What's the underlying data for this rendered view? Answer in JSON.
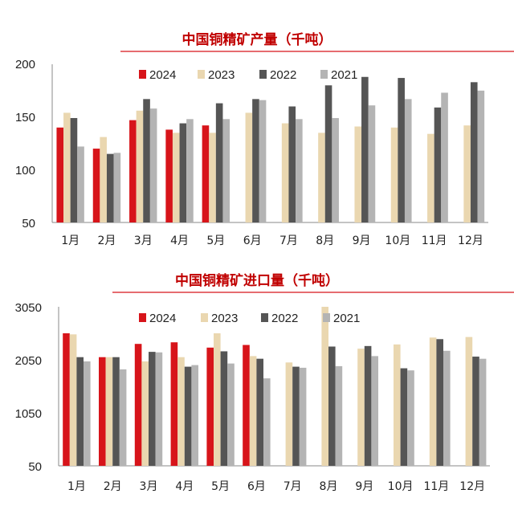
{
  "colors": {
    "2024": "#d7141a",
    "2023": "#ead7b0",
    "2022": "#555555",
    "2021": "#b4b4b4",
    "title": "#c00000",
    "rule": "#d7141a"
  },
  "chart_data": [
    {
      "type": "bar",
      "title": "中国铜精矿产量（千吨）",
      "categories": [
        "1月",
        "2月",
        "3月",
        "4月",
        "5月",
        "6月",
        "7月",
        "8月",
        "9月",
        "10月",
        "11月",
        "12月"
      ],
      "ylim": [
        50,
        200
      ],
      "yticks": [
        "200",
        "150",
        "100",
        "50"
      ],
      "ytick_values": [
        200,
        150,
        100,
        50
      ],
      "legend_position": "top-center",
      "grid": false,
      "series": [
        {
          "name": "2024",
          "color_key": "2024",
          "values": [
            140,
            120,
            147,
            138,
            142,
            null,
            null,
            null,
            null,
            null,
            null,
            null
          ]
        },
        {
          "name": "2023",
          "color_key": "2023",
          "values": [
            154,
            131,
            156,
            135,
            135,
            154,
            144,
            135,
            141,
            140,
            134,
            142
          ]
        },
        {
          "name": "2022",
          "color_key": "2022",
          "values": [
            149,
            115,
            167,
            144,
            163,
            167,
            160,
            180,
            188,
            187,
            159,
            183
          ]
        },
        {
          "name": "2021",
          "color_key": "2021",
          "values": [
            122,
            116,
            158,
            148,
            148,
            166,
            148,
            149,
            161,
            167,
            173,
            175
          ]
        }
      ]
    },
    {
      "type": "bar",
      "title": "中国铜精矿进口量（千吨）",
      "categories": [
        "1月",
        "2月",
        "3月",
        "4月",
        "5月",
        "6月",
        "7月",
        "8月",
        "9月",
        "10月",
        "11月",
        "12月"
      ],
      "ylim": [
        50,
        3050
      ],
      "yticks": [
        "3050",
        "2050",
        "1050",
        "50"
      ],
      "ytick_values": [
        3050,
        2050,
        1050,
        50
      ],
      "legend_position": "top-center",
      "grid": false,
      "series": [
        {
          "name": "2024",
          "color_key": "2024",
          "values": [
            2550,
            2100,
            2350,
            2380,
            2280,
            2330,
            null,
            null,
            null,
            null,
            null,
            null
          ]
        },
        {
          "name": "2023",
          "color_key": "2023",
          "values": [
            2530,
            2100,
            2020,
            2100,
            2550,
            2120,
            2000,
            3050,
            2260,
            2340,
            2470,
            2480
          ]
        },
        {
          "name": "2022",
          "color_key": "2022",
          "values": [
            2100,
            2100,
            2200,
            1920,
            2210,
            2070,
            1920,
            2300,
            2310,
            1890,
            2440,
            2110
          ]
        },
        {
          "name": "2021",
          "color_key": "2021",
          "values": [
            2020,
            1870,
            2190,
            1950,
            1980,
            1700,
            1900,
            1930,
            2120,
            1850,
            2220,
            2070
          ]
        }
      ]
    }
  ]
}
